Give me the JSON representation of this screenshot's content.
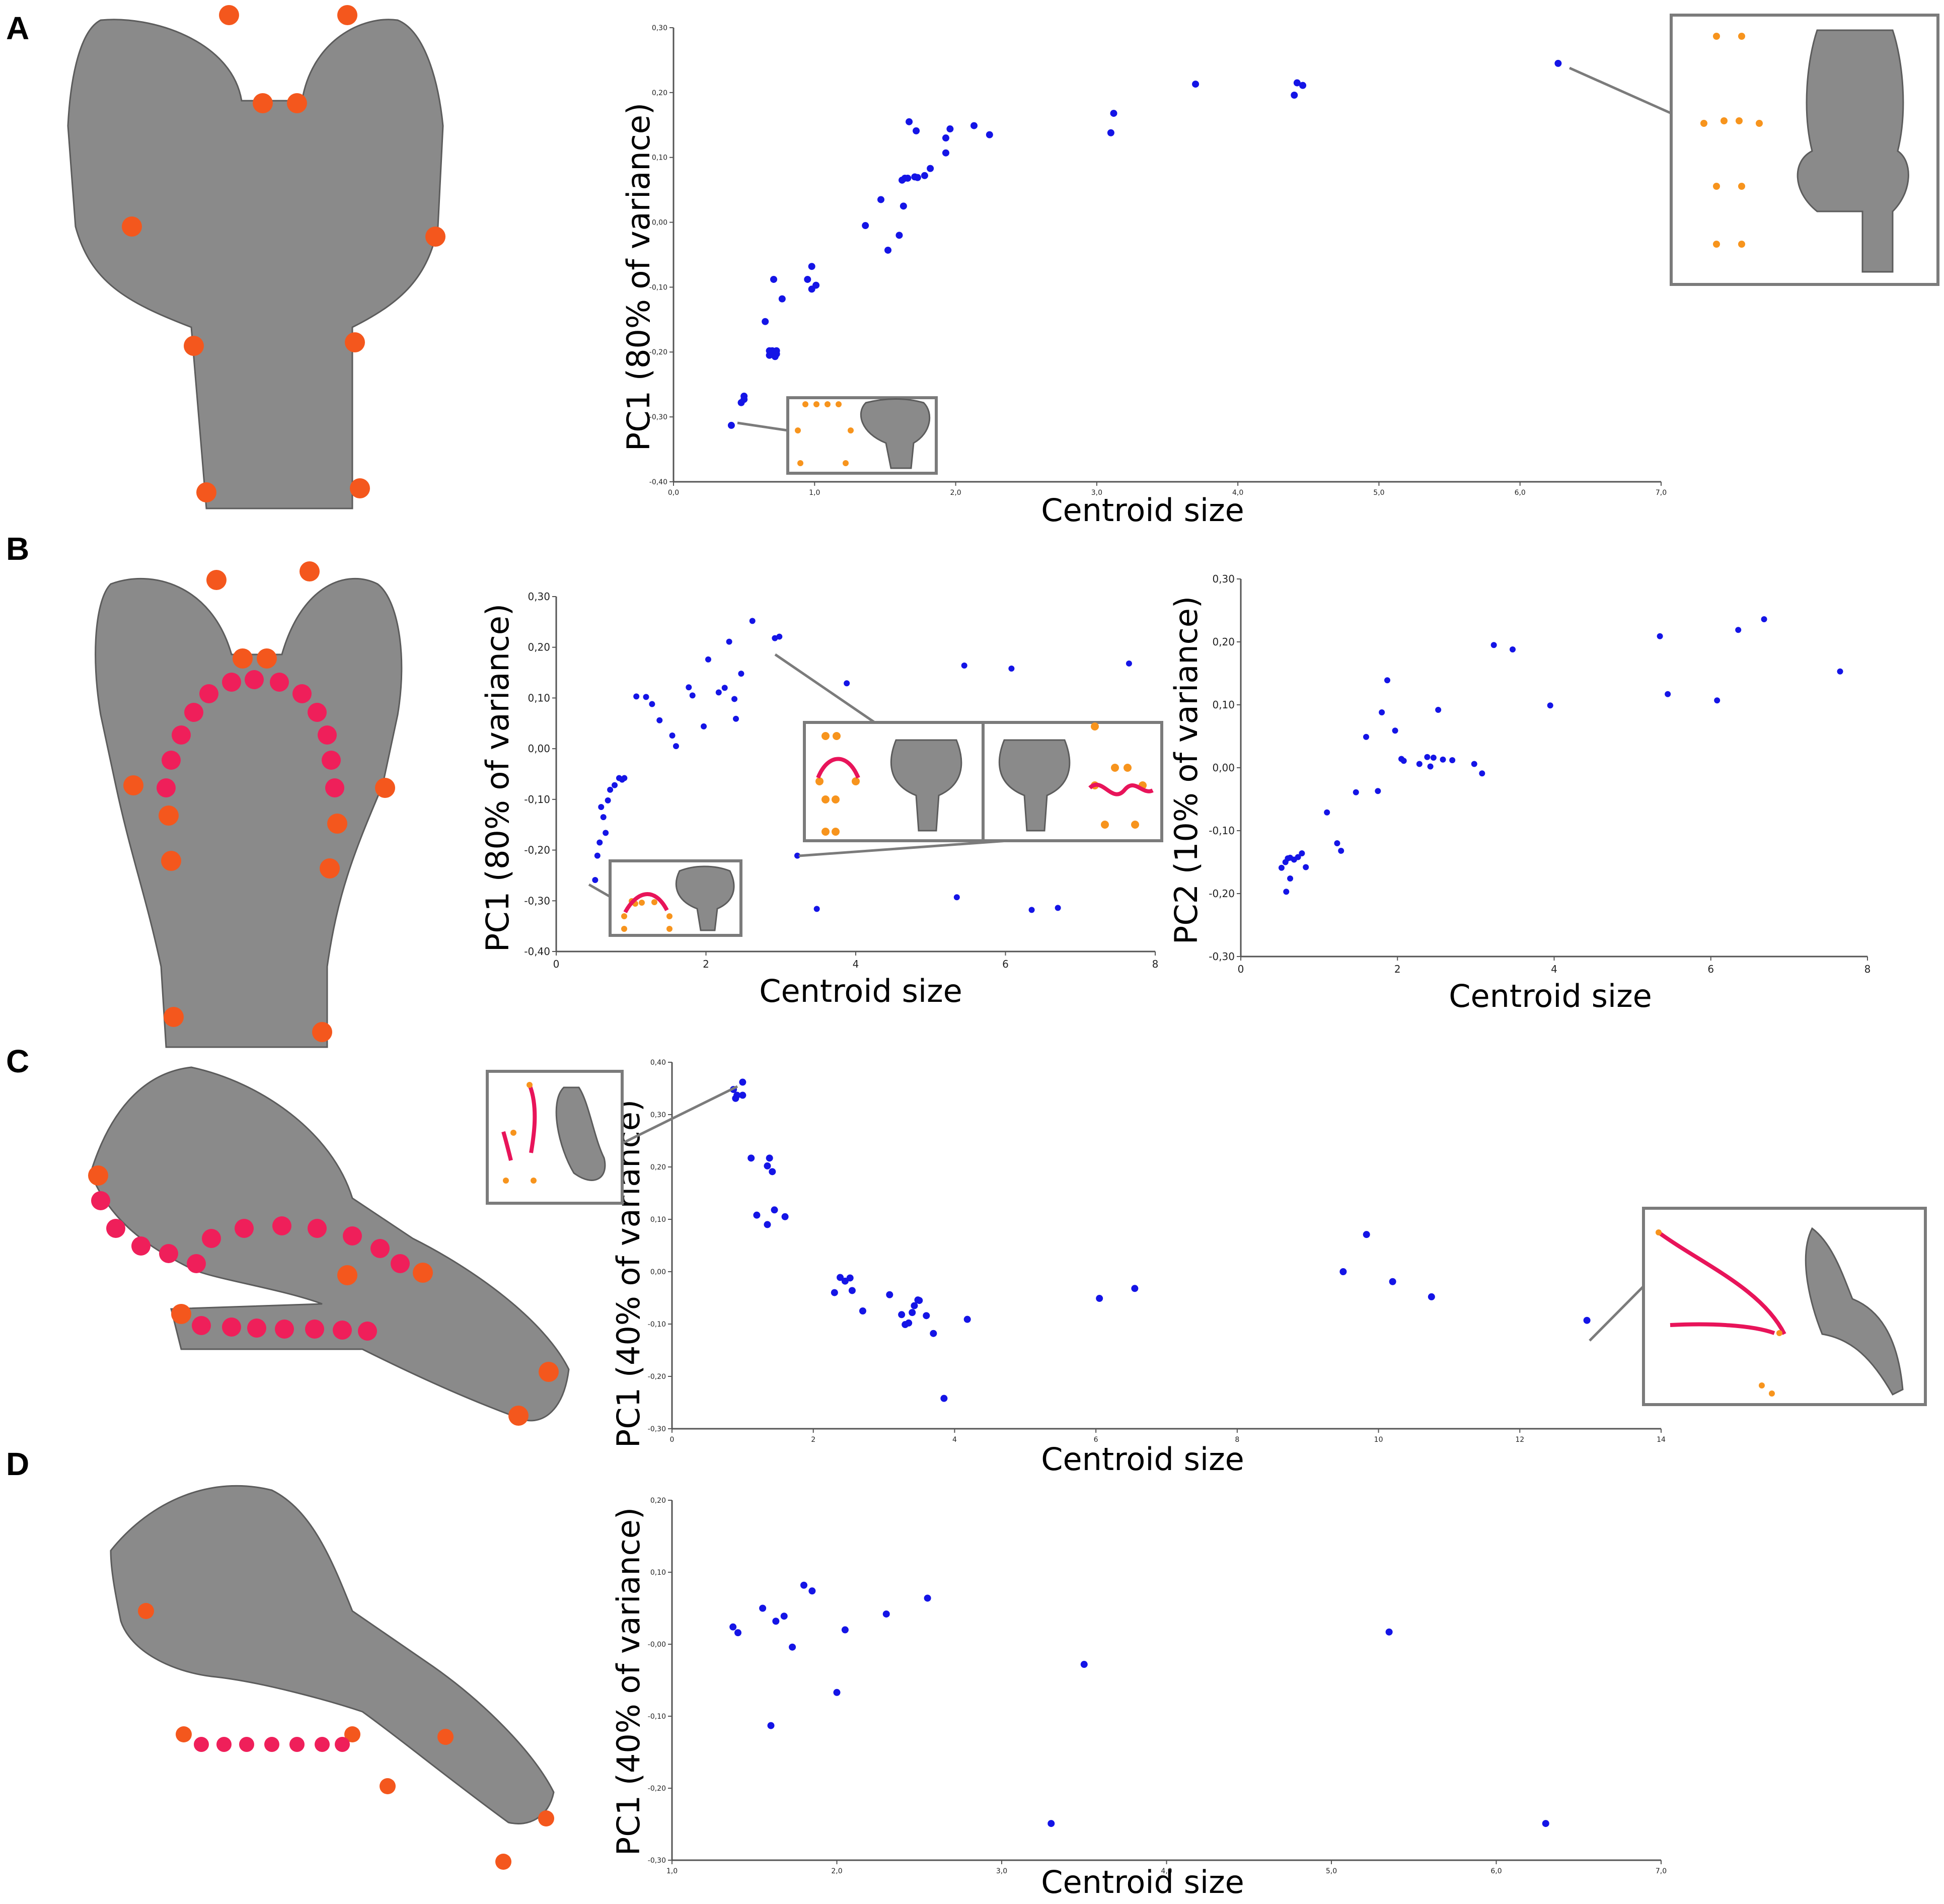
{
  "panels": [
    {
      "letter": "A"
    },
    {
      "letter": "B"
    },
    {
      "letter": "C"
    },
    {
      "letter": "D"
    }
  ],
  "colors": {
    "points": "#1414e6",
    "landmark": "#f4571d",
    "semilandmark": "#ef1f5a",
    "inset_landmark": "#f7941d",
    "sem_specimen": "#8a8a8a",
    "inset_frame": "#7b7b7b"
  },
  "chart_data": [
    {
      "id": "A",
      "type": "scatter",
      "xlabel": "Centroid size",
      "ylabel": "PC1 (80% of variance)",
      "xlim": [
        0,
        7
      ],
      "ylim": [
        -0.4,
        0.3
      ],
      "xticks": [
        "0,0",
        "1,0",
        "2,0",
        "3,0",
        "4,0",
        "5,0",
        "6,0",
        "7,0"
      ],
      "yticks": [
        "-0,40",
        "-0,30",
        "-0,20",
        "-0,10",
        "0,00",
        "0,10",
        "0,20",
        "0,30"
      ],
      "grid": false,
      "x": [
        0.41,
        0.5,
        0.5,
        0.48,
        0.65,
        0.68,
        0.7,
        0.72,
        0.73,
        0.68,
        0.73,
        0.77,
        0.71,
        0.95,
        0.98,
        0.98,
        1.01,
        1.36,
        1.47,
        1.52,
        1.6,
        1.63,
        1.62,
        1.64,
        1.66,
        1.71,
        1.73,
        1.78,
        1.82,
        1.93,
        1.93,
        1.96,
        2.13,
        2.24,
        1.67,
        1.72,
        3.1,
        3.12,
        3.7,
        4.4,
        4.42,
        4.46,
        6.27
      ],
      "y": [
        -0.313,
        -0.268,
        -0.273,
        -0.278,
        -0.153,
        -0.198,
        -0.198,
        -0.207,
        -0.203,
        -0.205,
        -0.198,
        -0.118,
        -0.088,
        -0.088,
        -0.068,
        -0.103,
        -0.097,
        -0.005,
        0.035,
        -0.043,
        -0.02,
        0.025,
        0.065,
        0.068,
        0.068,
        0.07,
        0.069,
        0.072,
        0.083,
        0.107,
        0.13,
        0.144,
        0.149,
        0.135,
        0.155,
        0.141,
        0.138,
        0.168,
        0.213,
        0.196,
        0.215,
        0.211,
        0.245
      ]
    },
    {
      "id": "B1",
      "type": "scatter",
      "xlabel": "Centroid size",
      "ylabel": "PC1 (80% of variance)",
      "xlim": [
        0,
        8
      ],
      "ylim": [
        -0.4,
        0.3
      ],
      "xticks": [
        "0",
        "2",
        "4",
        "6",
        "8"
      ],
      "yticks": [
        "-0,40",
        "-0,30",
        "-0,20",
        "-0,10",
        "0,00",
        "0,10",
        "0,20",
        "0,30"
      ],
      "grid": false,
      "x": [
        0.52,
        0.55,
        0.58,
        0.6,
        0.63,
        0.66,
        0.69,
        0.72,
        0.78,
        0.84,
        0.88,
        0.91,
        1.07,
        1.2,
        1.28,
        1.38,
        1.55,
        1.6,
        1.77,
        1.82,
        1.97,
        2.03,
        2.17,
        2.25,
        2.31,
        2.38,
        2.4,
        2.47,
        2.62,
        2.92,
        2.98,
        3.22,
        3.48,
        3.88,
        5.35,
        5.45,
        6.08,
        6.35,
        6.7,
        7.65
      ],
      "y": [
        -0.259,
        -0.211,
        -0.185,
        -0.115,
        -0.135,
        -0.166,
        -0.102,
        -0.081,
        -0.072,
        -0.058,
        -0.061,
        -0.058,
        0.103,
        0.102,
        0.088,
        0.056,
        0.026,
        0.005,
        0.121,
        0.105,
        0.044,
        0.176,
        0.111,
        0.12,
        0.211,
        0.098,
        0.059,
        0.148,
        0.252,
        0.218,
        0.221,
        -0.211,
        -0.316,
        0.129,
        -0.293,
        0.164,
        0.158,
        -0.318,
        -0.314,
        0.168
      ]
    },
    {
      "id": "B2",
      "type": "scatter",
      "xlabel": "Centroid size",
      "ylabel": "PC2 (10% of variance)",
      "xlim": [
        0,
        8
      ],
      "ylim": [
        -0.3,
        0.3
      ],
      "xticks": [
        "0",
        "2",
        "4",
        "6",
        "8"
      ],
      "yticks": [
        "-0,30",
        "-0,20",
        "-0,10",
        "0,00",
        "0,10",
        "0,20",
        "0,30"
      ],
      "grid": false,
      "x": [
        0.52,
        0.57,
        0.6,
        0.63,
        0.68,
        0.73,
        0.78,
        0.83,
        0.63,
        0.58,
        1.1,
        1.23,
        1.28,
        1.47,
        1.6,
        1.75,
        1.8,
        1.87,
        1.97,
        2.05,
        2.08,
        2.28,
        2.38,
        2.42,
        2.46,
        2.52,
        2.58,
        2.7,
        2.98,
        3.08,
        3.23,
        3.47,
        3.95,
        5.35,
        5.45,
        6.08,
        6.35,
        6.68,
        7.65
      ],
      "y": [
        -0.159,
        -0.15,
        -0.144,
        -0.143,
        -0.146,
        -0.142,
        -0.136,
        -0.158,
        -0.176,
        -0.197,
        -0.071,
        -0.12,
        -0.132,
        -0.039,
        0.049,
        -0.037,
        0.088,
        0.139,
        0.059,
        0.014,
        0.011,
        0.006,
        0.017,
        0.002,
        0.016,
        0.092,
        0.013,
        0.012,
        0.006,
        -0.009,
        0.195,
        0.188,
        0.099,
        0.209,
        0.117,
        0.107,
        0.219,
        0.236,
        0.153
      ]
    },
    {
      "id": "C",
      "type": "scatter",
      "xlabel": "Centroid size",
      "ylabel": "PC1 (40% of variance)",
      "xlim": [
        0,
        14
      ],
      "ylim": [
        -0.3,
        0.4
      ],
      "xticks": [
        "0",
        "2",
        "4",
        "6",
        "8",
        "10",
        "12",
        "14"
      ],
      "yticks": [
        "-0,30",
        "-0,20",
        "-0,10",
        "0,00",
        "0,10",
        "0,20",
        "0,30",
        "0,40"
      ],
      "grid": false,
      "x": [
        0.87,
        0.92,
        0.9,
        1.0,
        1.0,
        1.12,
        1.2,
        1.35,
        1.38,
        1.42,
        1.35,
        1.45,
        1.6,
        2.3,
        2.38,
        2.45,
        2.52,
        2.55,
        2.7,
        3.08,
        3.25,
        3.3,
        3.35,
        3.4,
        3.43,
        3.48,
        3.5,
        3.6,
        3.7,
        3.85,
        4.18,
        6.05,
        6.55,
        9.5,
        9.83,
        10.2,
        10.75,
        12.95
      ],
      "y": [
        0.348,
        0.337,
        0.331,
        0.362,
        0.337,
        0.217,
        0.108,
        0.202,
        0.217,
        0.191,
        0.09,
        0.118,
        0.105,
        -0.04,
        -0.011,
        -0.018,
        -0.012,
        -0.036,
        -0.075,
        -0.044,
        -0.082,
        -0.101,
        -0.098,
        -0.078,
        -0.065,
        -0.054,
        -0.055,
        -0.084,
        -0.118,
        -0.242,
        -0.091,
        -0.051,
        -0.032,
        0.0,
        0.071,
        -0.019,
        -0.048,
        -0.093
      ]
    },
    {
      "id": "D",
      "type": "scatter",
      "xlabel": "Centroid size",
      "ylabel": "PC1 (40% of variance)",
      "xlim": [
        1.0,
        7.0
      ],
      "ylim": [
        -0.3,
        0.2
      ],
      "xticks": [
        "1,0",
        "2,0",
        "3,0",
        "4,0",
        "5,0",
        "6,0",
        "7,0"
      ],
      "yticks": [
        "-0,30",
        "-0,20",
        "-0,10",
        "-0,00",
        "0,10",
        "0,20"
      ],
      "grid": false,
      "x": [
        1.37,
        1.4,
        1.55,
        1.6,
        1.63,
        1.68,
        1.73,
        1.8,
        1.85,
        2.0,
        2.05,
        2.3,
        2.55,
        3.3,
        3.5,
        5.35,
        6.3
      ],
      "y": [
        0.024,
        0.016,
        0.05,
        -0.113,
        0.032,
        0.039,
        -0.004,
        0.082,
        0.074,
        -0.067,
        0.02,
        0.042,
        0.064,
        -0.249,
        -0.028,
        0.017,
        -0.249
      ]
    }
  ]
}
